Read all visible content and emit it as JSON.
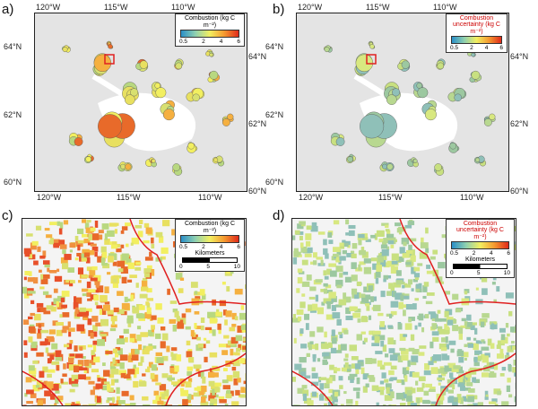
{
  "panels": [
    {
      "label": "a)",
      "legend": {
        "title": "Combustion (kg C m⁻²)",
        "ticks": [
          "0.5",
          "2",
          "4",
          "6"
        ]
      },
      "variable": "combustion"
    },
    {
      "label": "b)",
      "legend": {
        "title": "Combustion uncertainty (kg C m⁻²)",
        "ticks": [
          "0.5",
          "2",
          "4",
          "6"
        ]
      },
      "variable": "uncertainty"
    },
    {
      "label": "c)",
      "legend": {
        "title": "Combustion (kg C m⁻²)",
        "ticks": [
          "0.5",
          "2",
          "4",
          "6"
        ],
        "scale_title": "Kilometers",
        "scale_ticks": [
          "0",
          "5",
          "10"
        ]
      },
      "variable": "combustion"
    },
    {
      "label": "d)",
      "legend": {
        "title": "Combustion uncertainty (kg C m⁻²)",
        "ticks": [
          "0.5",
          "2",
          "4",
          "6"
        ],
        "scale_title": "Kilometers",
        "scale_ticks": [
          "0",
          "5",
          "10"
        ]
      },
      "variable": "uncertainty"
    }
  ],
  "axes": {
    "lon_top": [
      "120°W",
      "115°W",
      "110°W"
    ],
    "lon_bottom": [
      "120°W",
      "115°W",
      "110°W"
    ],
    "lat_left": [
      "64°N",
      "62°N",
      "60°N"
    ],
    "lat_right": [
      "64°N",
      "62°N",
      "60°N"
    ]
  },
  "colors": {
    "boundary": "#e02020",
    "low": "#2a8fc8",
    "mid": "#f2ef60",
    "high": "#e02a1a"
  }
}
